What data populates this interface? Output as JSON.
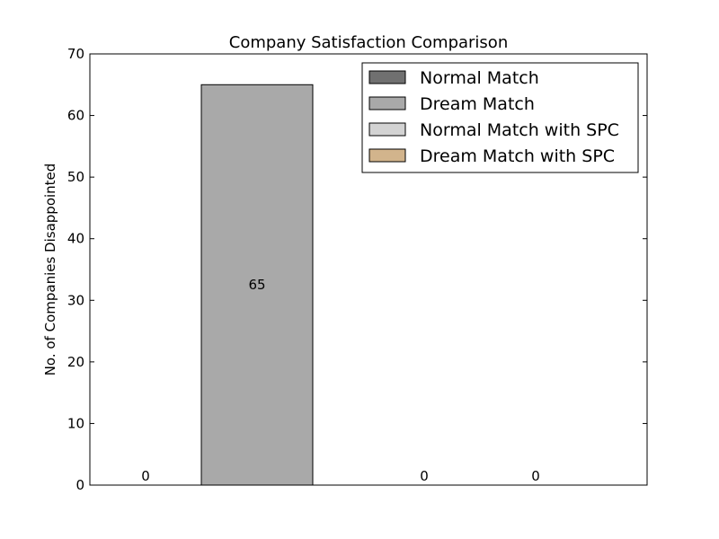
{
  "chart_data": {
    "type": "bar",
    "title": "Company Satisfaction Comparison",
    "xlabel": "",
    "ylabel": "No. of Companies Disappointed",
    "ylim": [
      0,
      70
    ],
    "yticks": [
      "0",
      "10",
      "20",
      "30",
      "40",
      "50",
      "60",
      "70"
    ],
    "grid": false,
    "legend_position": "top-right",
    "series": [
      {
        "name": "Normal Match",
        "value": 0,
        "label": "0",
        "color": "#707070"
      },
      {
        "name": "Dream Match",
        "value": 65,
        "label": "65",
        "color": "#a9a9a9"
      },
      {
        "name": "Normal Match with SPC",
        "value": 0,
        "label": "0",
        "color": "#d3d3d3"
      },
      {
        "name": "Dream Match with SPC",
        "value": 0,
        "label": "0",
        "color": "#d2b48c"
      }
    ]
  }
}
